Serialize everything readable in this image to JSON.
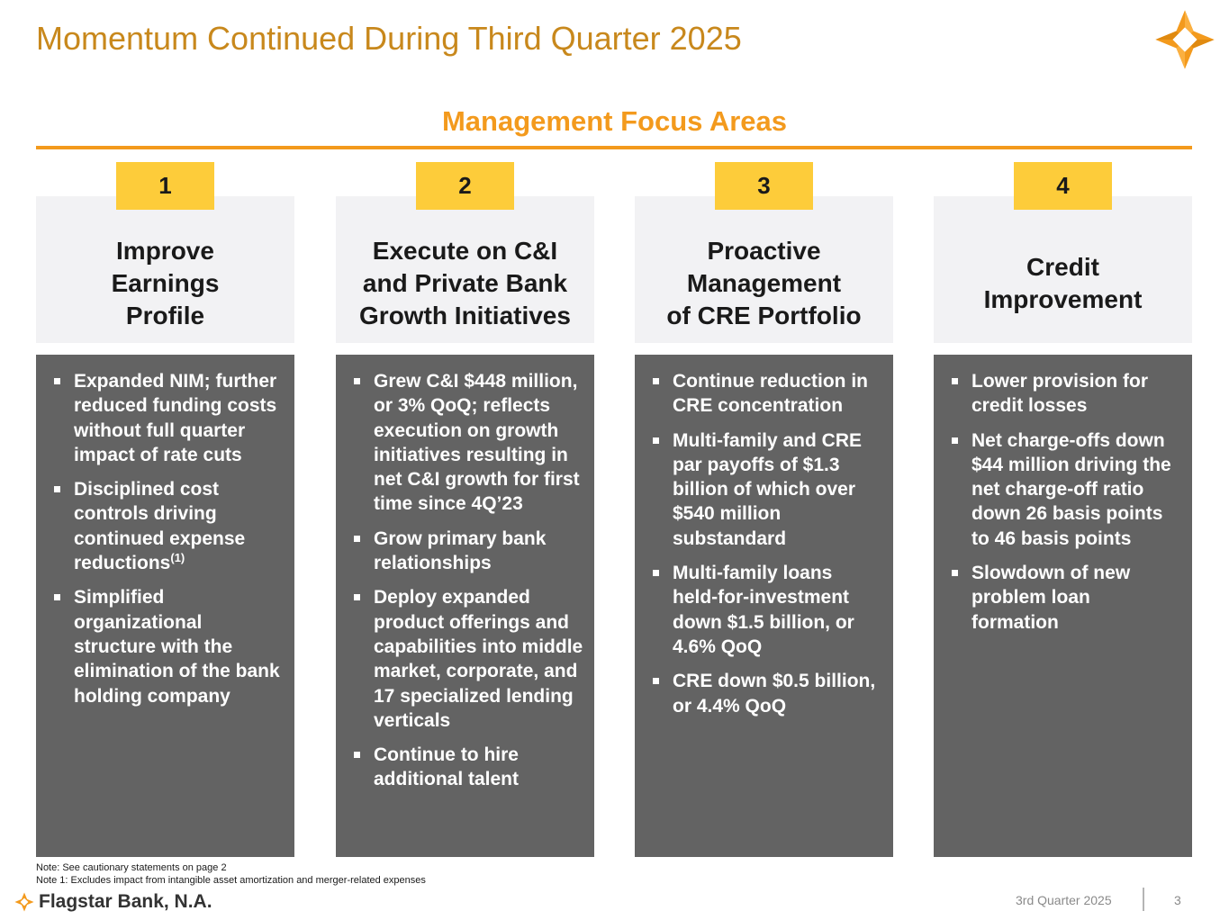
{
  "header": {
    "title": "Momentum Continued During Third Quarter 2025",
    "logo_icon": "flagstar-star-icon",
    "brand_color": "#F39A1D"
  },
  "section": {
    "subtitle": "Management Focus Areas"
  },
  "columns": [
    {
      "number": "1",
      "heading": "Improve\nEarnings\nProfile",
      "bullets": [
        "Expanded NIM; further reduced funding costs without full quarter impact of rate cuts",
        "Disciplined cost controls driving continued expense reductions",
        "Simplified organizational structure with the elimination of the bank holding company"
      ],
      "bullet_2_footnote": "(1)"
    },
    {
      "number": "2",
      "heading": "Execute on C&I\nand Private Bank\nGrowth Initiatives",
      "bullets": [
        "Grew C&I $448 million, or 3% QoQ; reflects execution on growth initiatives resulting in net C&I growth for first time since 4Q’23",
        "Grow primary bank relationships",
        "Deploy expanded product offerings and capabilities into middle market, corporate, and 17 specialized lending verticals",
        "Continue to hire additional talent"
      ]
    },
    {
      "number": "3",
      "heading": "Proactive\nManagement\nof CRE Portfolio",
      "bullets": [
        "Continue reduction in CRE concentration",
        "Multi-family and CRE par payoffs of $1.3 billion of which over $540 million substandard",
        "Multi-family loans held-for-investment down $1.5 billion, or 4.6% QoQ",
        "CRE down $0.5 billion, or 4.4% QoQ"
      ]
    },
    {
      "number": "4",
      "heading": "Credit\nImprovement",
      "bullets": [
        "Lower provision for credit losses",
        "Net charge-offs down $44 million driving the net charge-off ratio down 26 basis points to 46 basis points",
        "Slowdown of new problem loan formation"
      ]
    }
  ],
  "notes": {
    "note_1": "Note: See cautionary statements on page 2",
    "note_2": "Note 1: Excludes impact from intangible asset amortization and merger-related expenses"
  },
  "footer": {
    "brand": "Flagstar Bank, N.A.",
    "quarter": "3rd Quarter 2025",
    "page": "3"
  }
}
